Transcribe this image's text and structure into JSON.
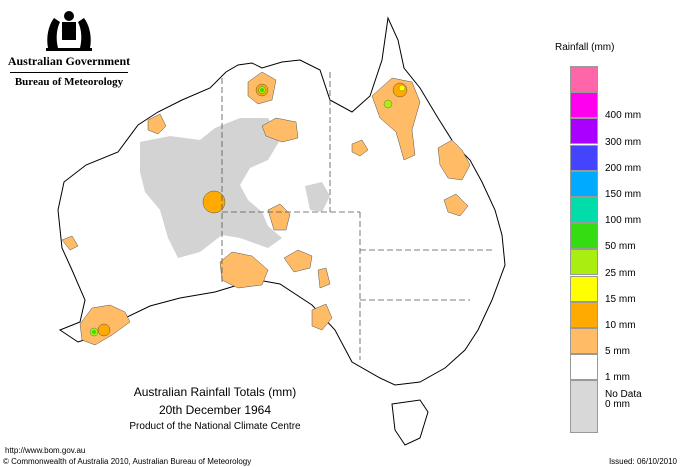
{
  "header": {
    "government": "Australian Government",
    "bureau": "Bureau of Meteorology"
  },
  "legend": {
    "title": "Rainfall (mm)",
    "items": [
      {
        "label": "",
        "color": "#ff66aa"
      },
      {
        "label": "400 mm",
        "color": "#ff00ee"
      },
      {
        "label": "300 mm",
        "color": "#aa00ff"
      },
      {
        "label": "200 mm",
        "color": "#4444ff"
      },
      {
        "label": "150 mm",
        "color": "#00aaff"
      },
      {
        "label": "100 mm",
        "color": "#00ddaa"
      },
      {
        "label": "50 mm",
        "color": "#33dd11"
      },
      {
        "label": "25 mm",
        "color": "#aaee11"
      },
      {
        "label": "15 mm",
        "color": "#ffff00"
      },
      {
        "label": "10 mm",
        "color": "#ffaa00"
      },
      {
        "label": "5 mm",
        "color": "#ffbb66"
      },
      {
        "label": "1 mm",
        "color": "#ffffff"
      },
      {
        "label": "0 mm",
        "color": "#d8d8d8"
      }
    ],
    "no_data_label": "No Data"
  },
  "map": {
    "title": "Australian Rainfall Totals (mm)",
    "date": "20th December 1964",
    "product": "Product of the National Climate Centre"
  },
  "footer": {
    "url": "http://www.bom.gov.au",
    "copyright": "© Commonwealth of Australia 2010, Australian Bureau of Meteorology",
    "issued": "Issued: 06/10/2010"
  }
}
